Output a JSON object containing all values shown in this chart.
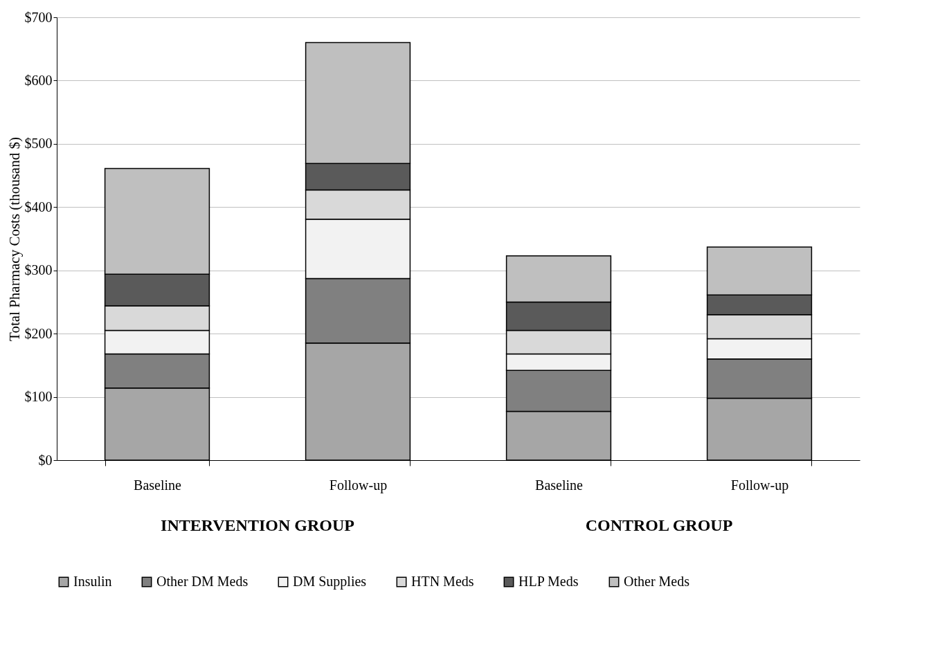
{
  "chart_data": {
    "type": "bar",
    "stacked": true,
    "ylabel": "Total Pharmacy Costs (thousand $)",
    "categories": [
      "Baseline",
      "Follow-up",
      "Baseline",
      "Follow-up"
    ],
    "series": [
      {
        "name": "Insulin",
        "color": "#a6a6a6",
        "values": [
          114,
          185,
          77,
          98
        ]
      },
      {
        "name": "Other DM Meds",
        "color": "#808080",
        "values": [
          54,
          102,
          65,
          62
        ]
      },
      {
        "name": "DM Supplies",
        "color": "#f2f2f2",
        "values": [
          37,
          94,
          26,
          32
        ]
      },
      {
        "name": "HTN Meds",
        "color": "#d9d9d9",
        "values": [
          39,
          46,
          37,
          38
        ]
      },
      {
        "name": "HLP Meds",
        "color": "#5a5a5a",
        "values": [
          50,
          42,
          45,
          31
        ]
      },
      {
        "name": "Other Meds",
        "color": "#bfbfbf",
        "values": [
          167,
          191,
          73,
          76
        ]
      }
    ],
    "ylim": [
      0,
      700
    ],
    "yticks": [
      {
        "value": 0,
        "label": "$0"
      },
      {
        "value": 100,
        "label": "$100"
      },
      {
        "value": 200,
        "label": "$200"
      },
      {
        "value": 300,
        "label": "$300"
      },
      {
        "value": 400,
        "label": "$400"
      },
      {
        "value": 500,
        "label": "$500"
      },
      {
        "value": 600,
        "label": "$600"
      },
      {
        "value": 700,
        "label": "$700"
      }
    ],
    "grid": "y",
    "legend": "bottom",
    "annotations": [
      "INTERVENTION GROUP",
      "CONTROL GROUP"
    ]
  }
}
